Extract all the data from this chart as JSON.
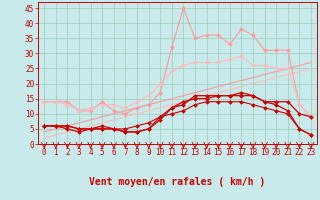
{
  "x": [
    0,
    1,
    2,
    3,
    4,
    5,
    6,
    7,
    8,
    9,
    10,
    11,
    12,
    13,
    14,
    15,
    16,
    17,
    18,
    19,
    20,
    21,
    22,
    23
  ],
  "line_pink1": [
    14,
    14,
    14,
    11,
    11,
    14,
    11,
    10,
    12,
    13,
    17,
    32,
    45,
    35,
    36,
    36,
    33,
    38,
    36,
    31,
    31,
    31,
    13,
    9
  ],
  "line_pink2": [
    14,
    14,
    13,
    11,
    12,
    13,
    13,
    12,
    14,
    16,
    20,
    24,
    26,
    27,
    27,
    27,
    28,
    29,
    26,
    26,
    25,
    25,
    13,
    9
  ],
  "line_straight1": [
    4,
    5,
    6,
    7,
    8,
    9,
    10,
    11,
    12,
    13,
    14,
    15,
    16,
    17,
    18,
    19,
    20,
    21,
    22,
    23,
    24,
    25,
    26,
    27
  ],
  "line_straight2": [
    2,
    3,
    4,
    5,
    6,
    7,
    8,
    9,
    10,
    11,
    12,
    13,
    14,
    15,
    16,
    17,
    18,
    19,
    20,
    21,
    22,
    23,
    24,
    25
  ],
  "line_dark1": [
    6,
    6,
    6,
    5,
    5,
    6,
    5,
    4,
    4,
    5,
    9,
    12,
    13,
    16,
    16,
    16,
    16,
    17,
    16,
    14,
    14,
    14,
    10,
    9
  ],
  "line_dark2": [
    6,
    6,
    5,
    4,
    5,
    5,
    5,
    4,
    4,
    5,
    8,
    12,
    14,
    15,
    15,
    16,
    16,
    16,
    16,
    14,
    13,
    11,
    5,
    3
  ],
  "line_dark3": [
    6,
    6,
    6,
    5,
    5,
    5,
    5,
    5,
    6,
    7,
    9,
    10,
    11,
    13,
    14,
    14,
    14,
    14,
    13,
    12,
    11,
    10,
    5,
    3
  ],
  "bg_color": "#c8eaea",
  "grid_color": "#99ccbb",
  "pink_color": "#ff9999",
  "pink2_color": "#ffbbbb",
  "dark_color": "#cc0000",
  "xlabel": "Vent moyen/en rafales ( km/h )",
  "ylim": [
    0,
    47
  ],
  "xlim": [
    -0.5,
    23.5
  ],
  "yticks": [
    0,
    5,
    10,
    15,
    20,
    25,
    30,
    35,
    40,
    45
  ],
  "xticks": [
    0,
    1,
    2,
    3,
    4,
    5,
    6,
    7,
    8,
    9,
    10,
    11,
    12,
    13,
    14,
    15,
    16,
    17,
    18,
    19,
    20,
    21,
    22,
    23
  ],
  "axis_fontsize": 7,
  "tick_fontsize": 5.5
}
